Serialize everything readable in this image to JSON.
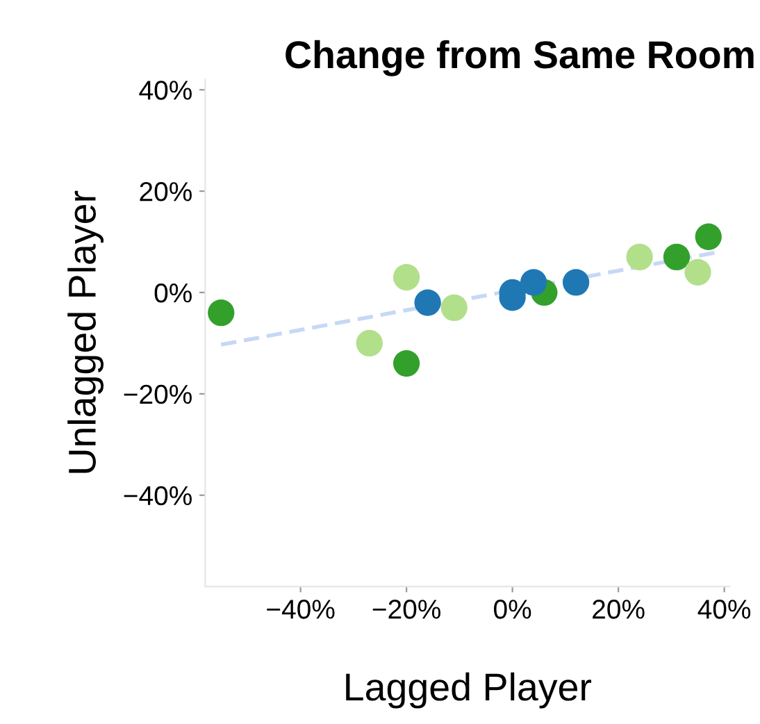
{
  "chart_data": {
    "type": "scatter",
    "title": "Change from Same Room",
    "xlabel": "Lagged Player",
    "ylabel": "Unlagged Player",
    "xlim": [
      -58,
      41
    ],
    "ylim": [
      -58,
      42
    ],
    "xticks": [
      {
        "value": -40,
        "label": "−40%"
      },
      {
        "value": -20,
        "label": "−20%"
      },
      {
        "value": 0,
        "label": "0%"
      },
      {
        "value": 20,
        "label": "20%"
      },
      {
        "value": 40,
        "label": "40%"
      }
    ],
    "yticks": [
      {
        "value": -40,
        "label": "−40%"
      },
      {
        "value": -20,
        "label": "−20%"
      },
      {
        "value": 0,
        "label": "0%"
      },
      {
        "value": 20,
        "label": "20%"
      },
      {
        "value": 40,
        "label": "40%"
      }
    ],
    "grid": false,
    "legend": false,
    "marker": "circle",
    "series": [
      {
        "type": "line",
        "line_style": "dashed",
        "marker": "none",
        "color": "#c6d8f5",
        "x": [
          -55,
          39
        ],
        "values": [
          -10.3,
          8
        ]
      },
      {
        "color": "#33a02c",
        "x": [
          -55,
          -20,
          6,
          31,
          37
        ],
        "values": [
          -4,
          -14,
          0,
          7,
          11
        ]
      },
      {
        "color": "#b2df8a",
        "x": [
          -27,
          -20,
          -11,
          24,
          35
        ],
        "values": [
          -10,
          3,
          -3,
          7,
          4
        ]
      },
      {
        "color": "#1f78b4",
        "x": [
          -16,
          0,
          0,
          4,
          12
        ],
        "values": [
          -2,
          0,
          -1,
          2,
          2
        ]
      }
    ]
  }
}
